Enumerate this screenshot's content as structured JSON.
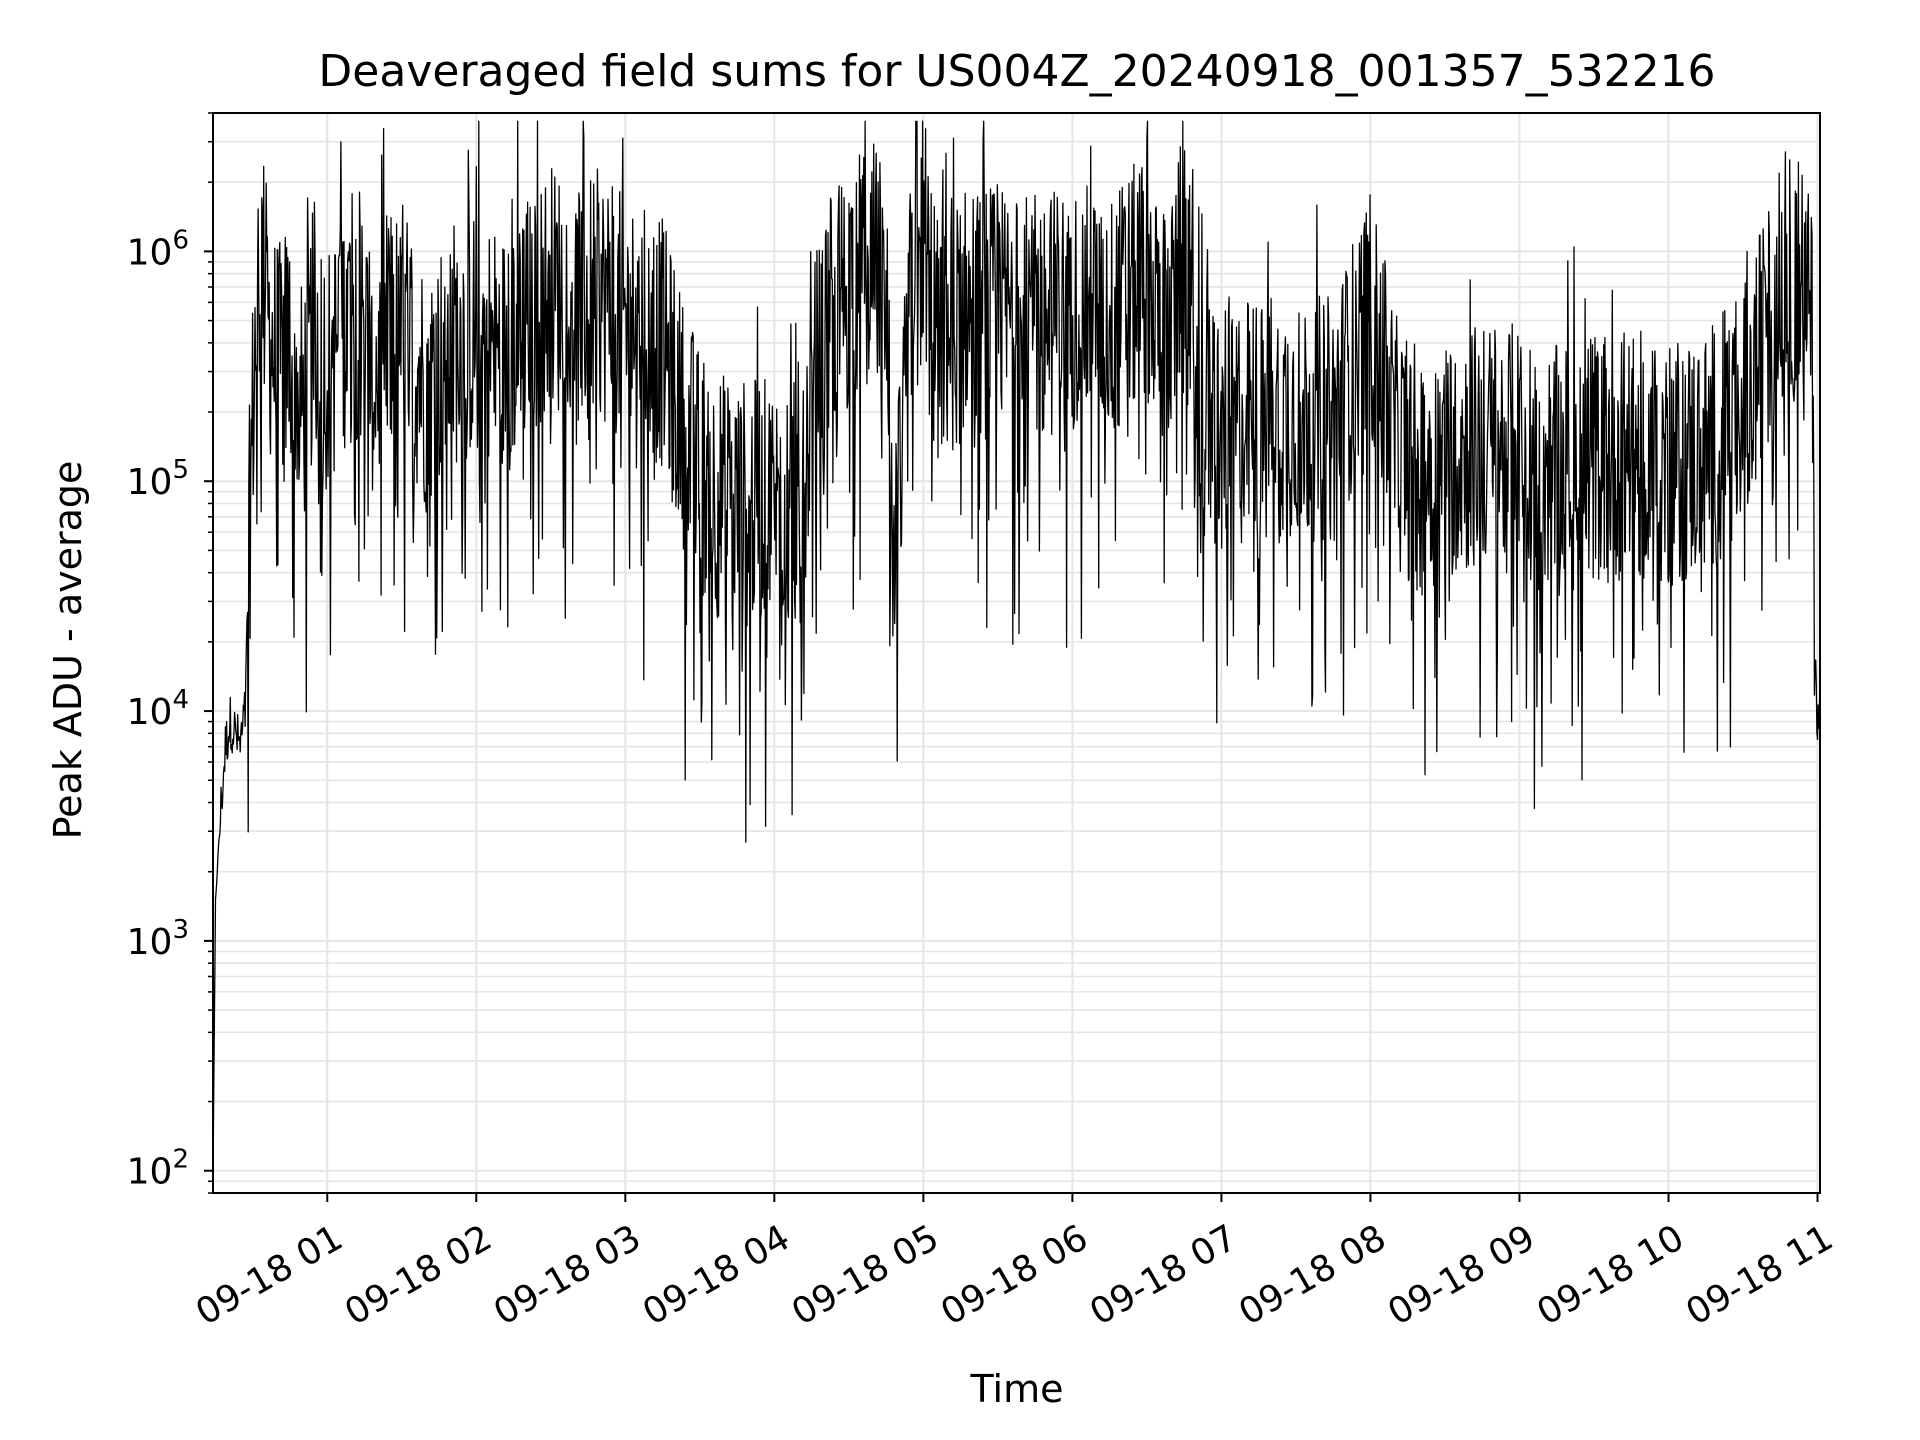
{
  "chart_data": {
    "type": "line",
    "title": "Deaveraged field sums for US004Z_20240918_001357_532216",
    "xlabel": "Time",
    "ylabel": "Peak ADU - average",
    "yscale": "log",
    "grid": true,
    "legend": "none",
    "line_color": "#000000",
    "grid_color": "#e5e5e5",
    "xlim": [
      "2024-09-18 00:14",
      "2024-09-18 11:01"
    ],
    "ylim": [
      80,
      4000000
    ],
    "x_ticks": [
      {
        "t": "2024-09-18 01:00",
        "label": "09-18 01"
      },
      {
        "t": "2024-09-18 02:00",
        "label": "09-18 02"
      },
      {
        "t": "2024-09-18 03:00",
        "label": "09-18 03"
      },
      {
        "t": "2024-09-18 04:00",
        "label": "09-18 04"
      },
      {
        "t": "2024-09-18 05:00",
        "label": "09-18 05"
      },
      {
        "t": "2024-09-18 06:00",
        "label": "09-18 06"
      },
      {
        "t": "2024-09-18 07:00",
        "label": "09-18 07"
      },
      {
        "t": "2024-09-18 08:00",
        "label": "09-18 08"
      },
      {
        "t": "2024-09-18 09:00",
        "label": "09-18 09"
      },
      {
        "t": "2024-09-18 10:00",
        "label": "09-18 10"
      },
      {
        "t": "2024-09-18 11:00",
        "label": "09-18 11"
      }
    ],
    "y_ticks": [
      {
        "value": 100,
        "base": "10",
        "exp": "2"
      },
      {
        "value": 1000,
        "base": "10",
        "exp": "3"
      },
      {
        "value": 10000,
        "base": "10",
        "exp": "4"
      },
      {
        "value": 100000,
        "base": "10",
        "exp": "5"
      },
      {
        "value": 1000000,
        "base": "10",
        "exp": "6"
      }
    ],
    "series": [
      {
        "x": [
          "2024-09-18 00:14",
          "2024-09-18 00:15",
          "2024-09-18 00:17",
          "2024-09-18 00:19",
          "2024-09-18 00:21",
          "2024-09-18 00:23",
          "2024-09-18 00:25",
          "2024-09-18 00:27",
          "2024-09-18 00:28",
          "2024-09-18 00:30",
          "2024-09-18 00:32",
          "2024-09-18 00:34",
          "2024-09-18 00:36",
          "2024-09-18 00:40",
          "2024-09-18 00:45",
          "2024-09-18 00:50",
          "2024-09-18 00:55",
          "2024-09-18 01:00",
          "2024-09-18 01:10",
          "2024-09-18 01:20",
          "2024-09-18 01:30",
          "2024-09-18 01:40",
          "2024-09-18 01:50",
          "2024-09-18 02:00",
          "2024-09-18 02:10",
          "2024-09-18 02:20",
          "2024-09-18 02:30",
          "2024-09-18 02:40",
          "2024-09-18 02:50",
          "2024-09-18 03:00",
          "2024-09-18 03:15",
          "2024-09-18 03:25",
          "2024-09-18 03:35",
          "2024-09-18 03:45",
          "2024-09-18 04:00",
          "2024-09-18 04:10",
          "2024-09-18 04:20",
          "2024-09-18 04:30",
          "2024-09-18 04:40",
          "2024-09-18 04:45",
          "2024-09-18 04:48",
          "2024-09-18 04:52",
          "2024-09-18 04:58",
          "2024-09-18 05:05",
          "2024-09-18 05:15",
          "2024-09-18 05:30",
          "2024-09-18 05:45",
          "2024-09-18 06:00",
          "2024-09-18 06:15",
          "2024-09-18 06:30",
          "2024-09-18 06:40",
          "2024-09-18 06:45",
          "2024-09-18 06:50",
          "2024-09-18 07:00",
          "2024-09-18 07:15",
          "2024-09-18 07:30",
          "2024-09-18 07:45",
          "2024-09-18 08:00",
          "2024-09-18 08:10",
          "2024-09-18 08:20",
          "2024-09-18 08:30",
          "2024-09-18 08:40",
          "2024-09-18 09:00",
          "2024-09-18 09:15",
          "2024-09-18 09:30",
          "2024-09-18 09:45",
          "2024-09-18 10:00",
          "2024-09-18 10:15",
          "2024-09-18 10:30",
          "2024-09-18 10:45",
          "2024-09-18 10:55",
          "2024-09-18 10:58",
          "2024-09-18 10:59",
          "2024-09-18 11:00",
          "2024-09-18 11:01"
        ],
        "y": [
          90,
          1500,
          3500,
          7000,
          9000,
          8000,
          7000,
          10000,
          30000,
          200000,
          700000,
          900000,
          500000,
          300000,
          400000,
          200000,
          500000,
          300000,
          600000,
          300000,
          500000,
          250000,
          400000,
          450000,
          350000,
          500000,
          700000,
          600000,
          650000,
          500000,
          400000,
          150000,
          90000,
          80000,
          80000,
          85000,
          500000,
          700000,
          900000,
          600000,
          30000,
          150000,
          2500000,
          400000,
          500000,
          550000,
          500000,
          600000,
          500000,
          800000,
          400000,
          1200000,
          200000,
          180000,
          180000,
          200000,
          180000,
          550000,
          150000,
          110000,
          130000,
          140000,
          140000,
          110000,
          130000,
          130000,
          120000,
          130000,
          200000,
          700000,
          800000,
          400000,
          20000,
          8000,
          11000
        ]
      }
    ]
  }
}
